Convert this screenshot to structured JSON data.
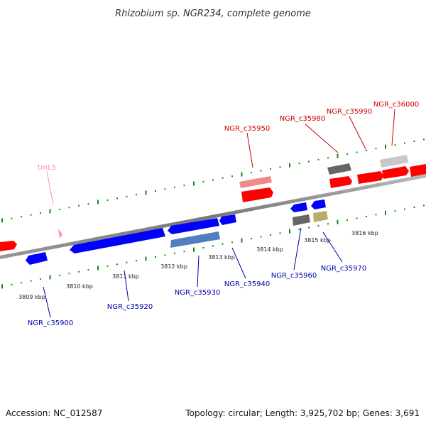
{
  "title": "Rhizobium sp. NGR234, complete genome",
  "footer": {
    "accession": "Accession: NC_012587",
    "topology": "Topology: circular; Length: 3,925,702 bp; Genes: 3,691"
  },
  "colors": {
    "forward_gene": "#ff0000",
    "forward_gene_light": "#f08a8a",
    "reverse_gene": "#0000ff",
    "reverse_gene_alt": "#4f7fc0",
    "trna": "#ff88cc",
    "pseudo_dark": "#666666",
    "pseudo_light": "#c8c8c8",
    "misc_tan": "#b9ad6a",
    "tick": "#118811",
    "axis": "#888888",
    "label_forward": "#cc0000",
    "label_reverse": "#0000aa"
  },
  "kbp_labels": [
    "3809 kbp",
    "3810 kbp",
    "3811 kbp",
    "3812 kbp",
    "3813 kbp",
    "3814 kbp",
    "3815 kbp",
    "3816 kbp"
  ],
  "forward_labels": [
    "NGR_c35950",
    "NGR_c35980",
    "NGR_c35990",
    "NGR_c36000"
  ],
  "reverse_labels": [
    "NGR_c35900",
    "NGR_c35920",
    "NGR_c35930",
    "NGR_c35940",
    "NGR_c35960",
    "NGR_c35970"
  ],
  "trna_label": "trnL5"
}
